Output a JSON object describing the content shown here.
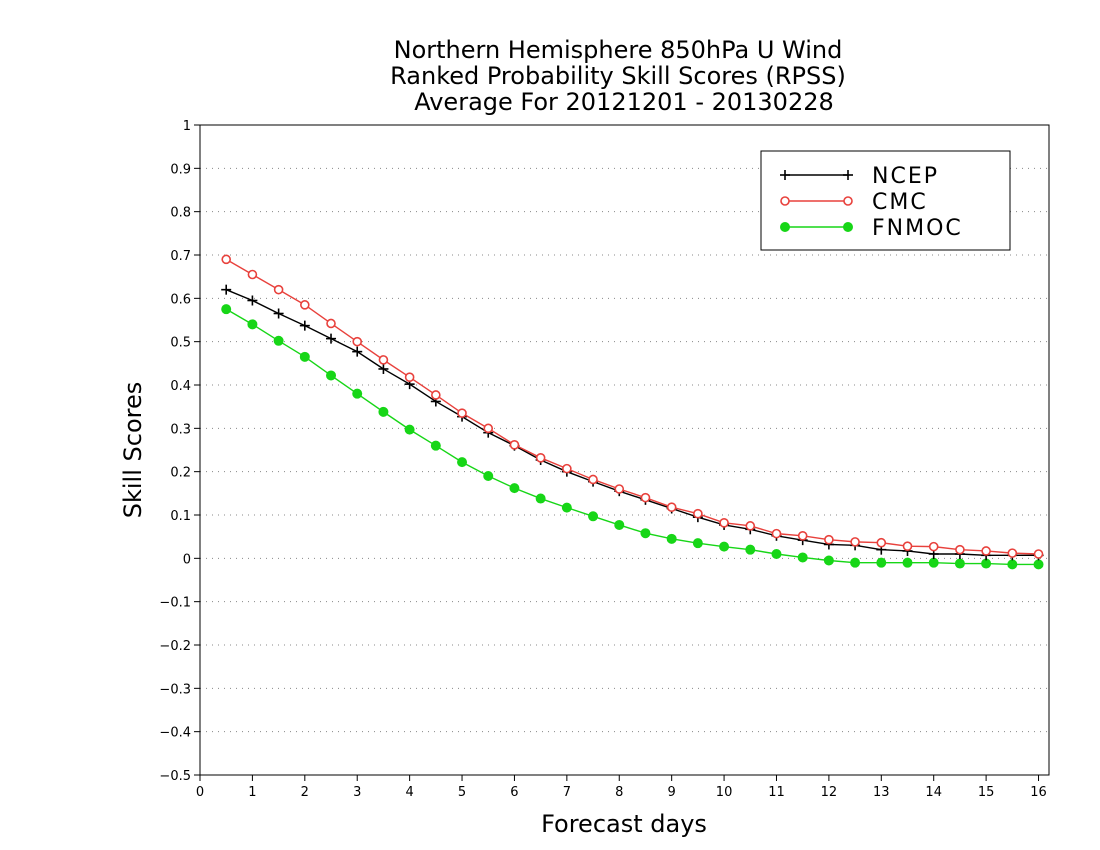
{
  "chart_data": {
    "type": "line",
    "title": [
      "Northern Hemisphere 850hPa U Wind",
      "Ranked Probability Skill Scores (RPSS)",
      "Average For 20121201 - 20130228"
    ],
    "xlabel": "Forecast days",
    "ylabel": "Skill Scores",
    "xlim": [
      0,
      16.2
    ],
    "ylim": [
      -0.5,
      1
    ],
    "xticks": [
      0,
      1,
      2,
      3,
      4,
      5,
      6,
      7,
      8,
      9,
      10,
      11,
      12,
      13,
      14,
      15,
      16
    ],
    "yticks": [
      1,
      0.9,
      0.8,
      0.7,
      0.6,
      0.5,
      0.4,
      0.3,
      0.2,
      0.1,
      0,
      -0.1,
      -0.2,
      -0.3,
      -0.4,
      -0.5
    ],
    "ytick_labels": [
      "1",
      "0.9",
      "0.8",
      "0.7",
      "0.6",
      "0.5",
      "0.4",
      "0.3",
      "0.2",
      "0.1",
      "0",
      "−0.1",
      "−0.2",
      "−0.3",
      "−0.4",
      "−0.5"
    ],
    "grid": "horizontal-dotted",
    "legend_position": "top-right",
    "x": [
      0.5,
      1,
      1.5,
      2,
      2.5,
      3,
      3.5,
      4,
      4.5,
      5,
      5.5,
      6,
      6.5,
      7,
      7.5,
      8,
      8.5,
      9,
      9.5,
      10,
      10.5,
      11,
      11.5,
      12,
      12.5,
      13,
      13.5,
      14,
      14.5,
      15,
      15.5,
      16
    ],
    "series": [
      {
        "name": "NCEP",
        "color": "#000000",
        "marker": "plus",
        "values": [
          0.62,
          0.595,
          0.565,
          0.537,
          0.507,
          0.477,
          0.437,
          0.402,
          0.362,
          0.327,
          0.29,
          0.26,
          0.227,
          0.2,
          0.177,
          0.155,
          0.135,
          0.115,
          0.095,
          0.077,
          0.067,
          0.052,
          0.042,
          0.032,
          0.03,
          0.02,
          0.017,
          0.01,
          0.01,
          0.007,
          0.007,
          0.007
        ]
      },
      {
        "name": "CMC",
        "color": "#e8413c",
        "marker": "open-circle",
        "values": [
          0.69,
          0.655,
          0.62,
          0.585,
          0.542,
          0.5,
          0.458,
          0.418,
          0.377,
          0.335,
          0.3,
          0.262,
          0.232,
          0.207,
          0.182,
          0.16,
          0.14,
          0.118,
          0.103,
          0.082,
          0.075,
          0.057,
          0.052,
          0.043,
          0.038,
          0.036,
          0.028,
          0.027,
          0.02,
          0.017,
          0.012,
          0.01
        ]
      },
      {
        "name": "FNMOC",
        "color": "#17d617",
        "marker": "filled-circle",
        "values": [
          0.575,
          0.54,
          0.502,
          0.465,
          0.422,
          0.38,
          0.338,
          0.297,
          0.26,
          0.222,
          0.19,
          0.162,
          0.138,
          0.117,
          0.097,
          0.077,
          0.058,
          0.045,
          0.035,
          0.027,
          0.02,
          0.01,
          0.002,
          -0.005,
          -0.01,
          -0.01,
          -0.01,
          -0.01,
          -0.012,
          -0.012,
          -0.014,
          -0.014
        ]
      }
    ]
  }
}
